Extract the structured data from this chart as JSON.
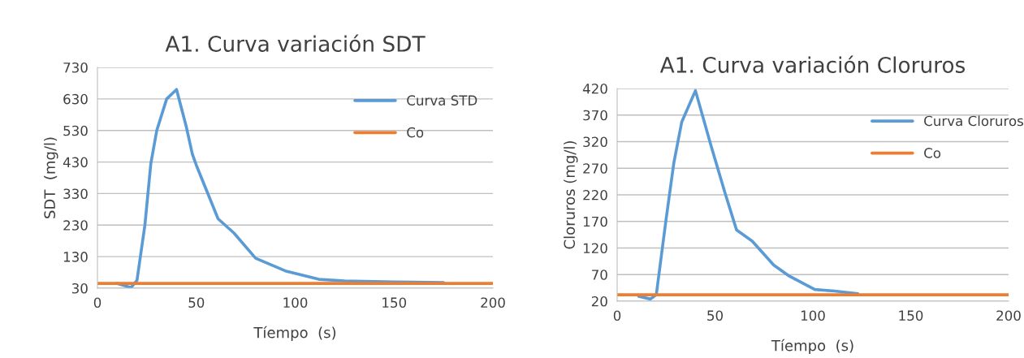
{
  "chart_data": [
    {
      "type": "line",
      "title": "A1. Curva variación SDT",
      "xlabel": "Tíempo  (s)",
      "ylabel": "SDT  (mg/l)",
      "xlim": [
        0,
        200
      ],
      "xticks": [
        0,
        50,
        100,
        150,
        200
      ],
      "ylim": [
        30,
        730
      ],
      "yticks": [
        30,
        130,
        230,
        330,
        430,
        530,
        630,
        730
      ],
      "grid": "y",
      "legend": "top right",
      "marker": "none",
      "line_style": "solid",
      "series": [
        {
          "name": "Curva STD",
          "color": "#5b9bd5",
          "x": [
            10,
            17,
            20,
            24,
            27,
            30,
            35,
            40,
            45,
            48,
            50,
            61,
            69,
            80,
            95,
            112,
            125,
            150,
            175
          ],
          "values": [
            45,
            32,
            55,
            230,
            425,
            530,
            630,
            660,
            540,
            455,
            420,
            250,
            205,
            125,
            85,
            58,
            53,
            50,
            48
          ]
        },
        {
          "name": "Co",
          "color": "#ed7d31",
          "x": [
            0,
            200
          ],
          "values": [
            45,
            45
          ]
        }
      ]
    },
    {
      "type": "line",
      "title": "A1. Curva variación Cloruros",
      "xlabel": "Tíempo  (s)",
      "ylabel": "Cloruros (mg/l)",
      "xlim": [
        0,
        200
      ],
      "xticks": [
        0,
        50,
        100,
        150,
        200
      ],
      "ylim": [
        20,
        420
      ],
      "yticks": [
        20,
        70,
        120,
        170,
        220,
        270,
        320,
        370,
        420
      ],
      "grid": "y",
      "legend": "top right",
      "marker": "none",
      "line_style": "solid",
      "series": [
        {
          "name": "Curva Cloruros",
          "color": "#5b9bd5",
          "x": [
            11,
            17,
            20,
            25,
            29,
            33,
            40,
            48,
            55,
            61,
            69,
            80,
            88,
            101,
            111,
            123
          ],
          "values": [
            29,
            24,
            32,
            174,
            281,
            357,
            416,
            312,
            225,
            154,
            133,
            88,
            67,
            42,
            39,
            34
          ]
        },
        {
          "name": "Co",
          "color": "#ed7d31",
          "x": [
            0,
            200
          ],
          "values": [
            32,
            32
          ]
        }
      ]
    }
  ]
}
